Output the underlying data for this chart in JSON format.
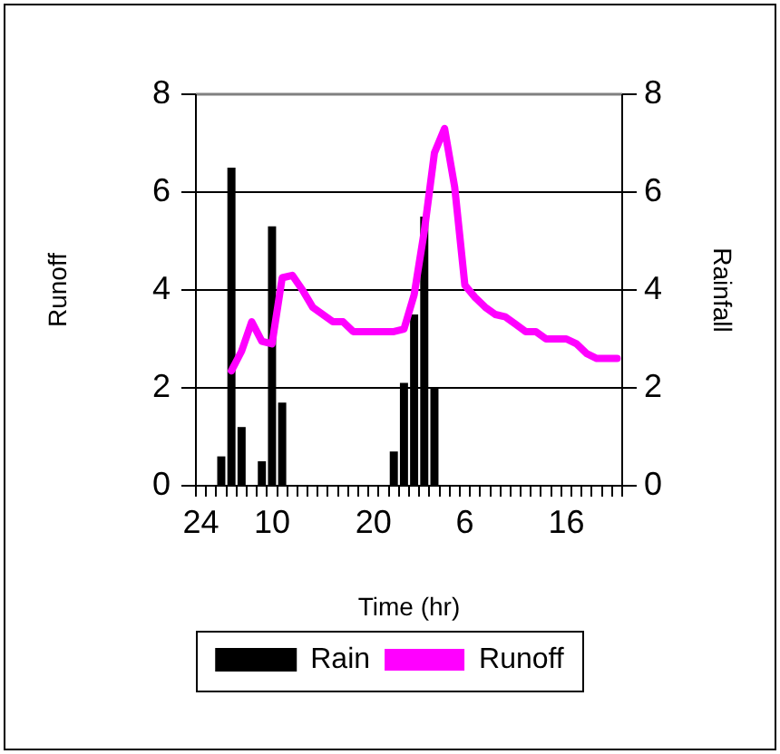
{
  "chart_data": {
    "type": "line",
    "xlabel": "Time (hr)",
    "ylabel": "Runoff",
    "y2label": "Rainfall",
    "categories": [
      "24",
      null,
      null,
      null,
      null,
      null,
      null,
      "10",
      null,
      null,
      null,
      null,
      null,
      null,
      null,
      null,
      null,
      "20",
      null,
      null,
      null,
      null,
      null,
      null,
      null,
      null,
      "6",
      null,
      null,
      null,
      null,
      null,
      null,
      null,
      null,
      null,
      "16",
      null,
      null,
      null,
      null,
      null
    ],
    "ylim": [
      0,
      8
    ],
    "yticks": [
      0,
      2,
      4,
      6,
      8
    ],
    "y2lim": [
      0,
      8
    ],
    "y2ticks": [
      0,
      2,
      4,
      6,
      8
    ],
    "grid": "y",
    "legend": "bottom",
    "marker": "none",
    "line_style": "solid",
    "series": [
      {
        "name": "Rain",
        "type": "bar",
        "axis": "y2",
        "color": "#000000",
        "values": [
          null,
          null,
          0.6,
          6.5,
          1.2,
          null,
          0.5,
          5.3,
          1.7,
          null,
          null,
          null,
          null,
          null,
          null,
          null,
          null,
          null,
          null,
          0.7,
          2.1,
          3.5,
          5.5,
          2.0,
          null,
          null,
          null,
          null,
          null,
          null,
          null,
          null,
          null,
          null,
          null,
          null,
          null,
          null,
          null,
          null,
          null,
          null
        ]
      },
      {
        "name": "Runoff",
        "color": "#ff00ff",
        "values": [
          null,
          null,
          null,
          2.35,
          2.75,
          3.35,
          2.95,
          2.9,
          4.25,
          4.3,
          4.0,
          3.65,
          3.5,
          3.35,
          3.35,
          3.15,
          3.15,
          3.15,
          3.15,
          3.15,
          3.2,
          3.9,
          5.2,
          6.8,
          7.3,
          6.1,
          4.1,
          3.85,
          3.65,
          3.5,
          3.45,
          3.3,
          3.15,
          3.15,
          3.0,
          3.0,
          3.0,
          2.9,
          2.7,
          2.6,
          2.6,
          2.6
        ]
      }
    ]
  }
}
